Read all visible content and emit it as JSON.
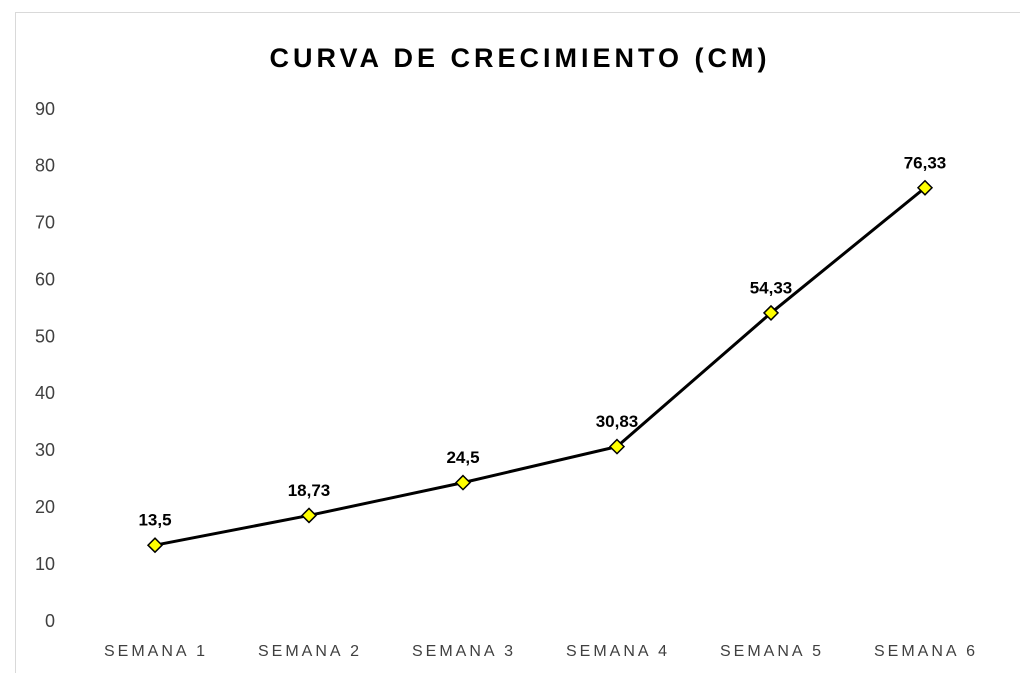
{
  "chart_data": {
    "type": "line",
    "title": "CURVA DE CRECIMIENTO (CM)",
    "categories": [
      "SEMANA 1",
      "SEMANA 2",
      "SEMANA 3",
      "SEMANA 4",
      "SEMANA 5",
      "SEMANA 6"
    ],
    "values": [
      13.5,
      18.73,
      24.5,
      30.83,
      54.33,
      76.33
    ],
    "value_labels": [
      "13,5",
      "18,73",
      "24,5",
      "30,83",
      "54,33",
      "76,33"
    ],
    "color": "#000000",
    "marker_color": "#ffff00",
    "ylim": [
      0,
      90
    ],
    "yticks": [
      0,
      10,
      20,
      30,
      40,
      50,
      60,
      70,
      80,
      90
    ],
    "grid": false
  }
}
